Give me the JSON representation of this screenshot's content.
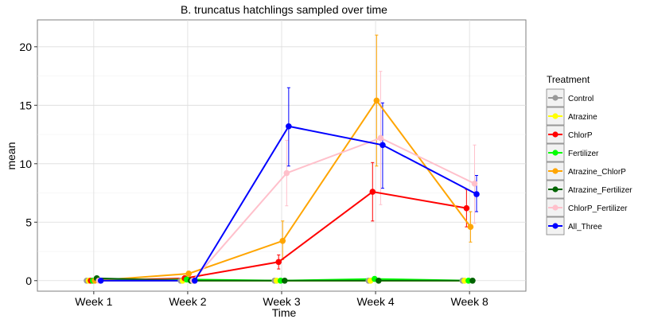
{
  "chart_data": {
    "type": "line",
    "title": "B. truncatus hatchlings sampled over time",
    "xlabel": "Time",
    "ylabel": "mean",
    "categories": [
      "Week 1",
      "Week 2",
      "Week 3",
      "Week 4",
      "Week 8"
    ],
    "ylim": [
      -0.9,
      22.3
    ],
    "yticks": [
      0,
      5,
      10,
      15,
      20
    ],
    "grid": true,
    "legend": {
      "title": "Treatment",
      "position": "right"
    },
    "series": [
      {
        "name": "Control",
        "color": "#999999",
        "values": [
          0,
          0,
          0,
          0,
          0
        ],
        "err_low": [
          0,
          0,
          0,
          0,
          0
        ],
        "err_high": [
          0,
          0,
          0,
          0,
          0
        ]
      },
      {
        "name": "Atrazine",
        "color": "#ffff00",
        "values": [
          0,
          0,
          0,
          0,
          0
        ],
        "err_low": [
          0,
          0,
          0,
          0,
          0
        ],
        "err_high": [
          0,
          0,
          0,
          0,
          0
        ]
      },
      {
        "name": "ChlorP",
        "color": "#ff0000",
        "values": [
          0,
          0.2,
          1.6,
          7.6,
          6.2
        ],
        "err_low": [
          0,
          0,
          1.0,
          5.1,
          4.6
        ],
        "err_high": [
          0,
          0.4,
          2.2,
          10.1,
          7.8
        ]
      },
      {
        "name": "Fertilizer",
        "color": "#00ff00",
        "values": [
          0,
          0.1,
          0,
          0.15,
          0
        ],
        "err_low": [
          0,
          0,
          0,
          0,
          0
        ],
        "err_high": [
          0,
          0.2,
          0,
          0.3,
          0
        ]
      },
      {
        "name": "Atrazine_ChlorP",
        "color": "#ffa500",
        "values": [
          0,
          0.6,
          3.4,
          15.4,
          4.6
        ],
        "err_low": [
          0,
          0.4,
          1.8,
          9.8,
          3.3
        ],
        "err_high": [
          0,
          0.8,
          5.1,
          21.0,
          5.9
        ]
      },
      {
        "name": "Atrazine_Fertilizer",
        "color": "#006400",
        "values": [
          0.2,
          0,
          0,
          0,
          0
        ],
        "err_low": [
          0,
          0,
          0,
          0,
          0
        ],
        "err_high": [
          0.4,
          0,
          0,
          0,
          0
        ]
      },
      {
        "name": "ChlorP_Fertilizer",
        "color": "#ffc0cb",
        "values": [
          0,
          0,
          9.2,
          12.2,
          8.3
        ],
        "err_low": [
          0,
          0,
          6.4,
          6.5,
          4.9
        ],
        "err_high": [
          0,
          0,
          12.0,
          17.9,
          11.6
        ]
      },
      {
        "name": "All_Three",
        "color": "#0000ff",
        "values": [
          0,
          0,
          13.2,
          11.6,
          7.4
        ],
        "err_low": [
          0,
          0,
          9.8,
          7.9,
          5.9
        ],
        "err_high": [
          0,
          0,
          16.5,
          15.2,
          9.0
        ]
      }
    ]
  }
}
